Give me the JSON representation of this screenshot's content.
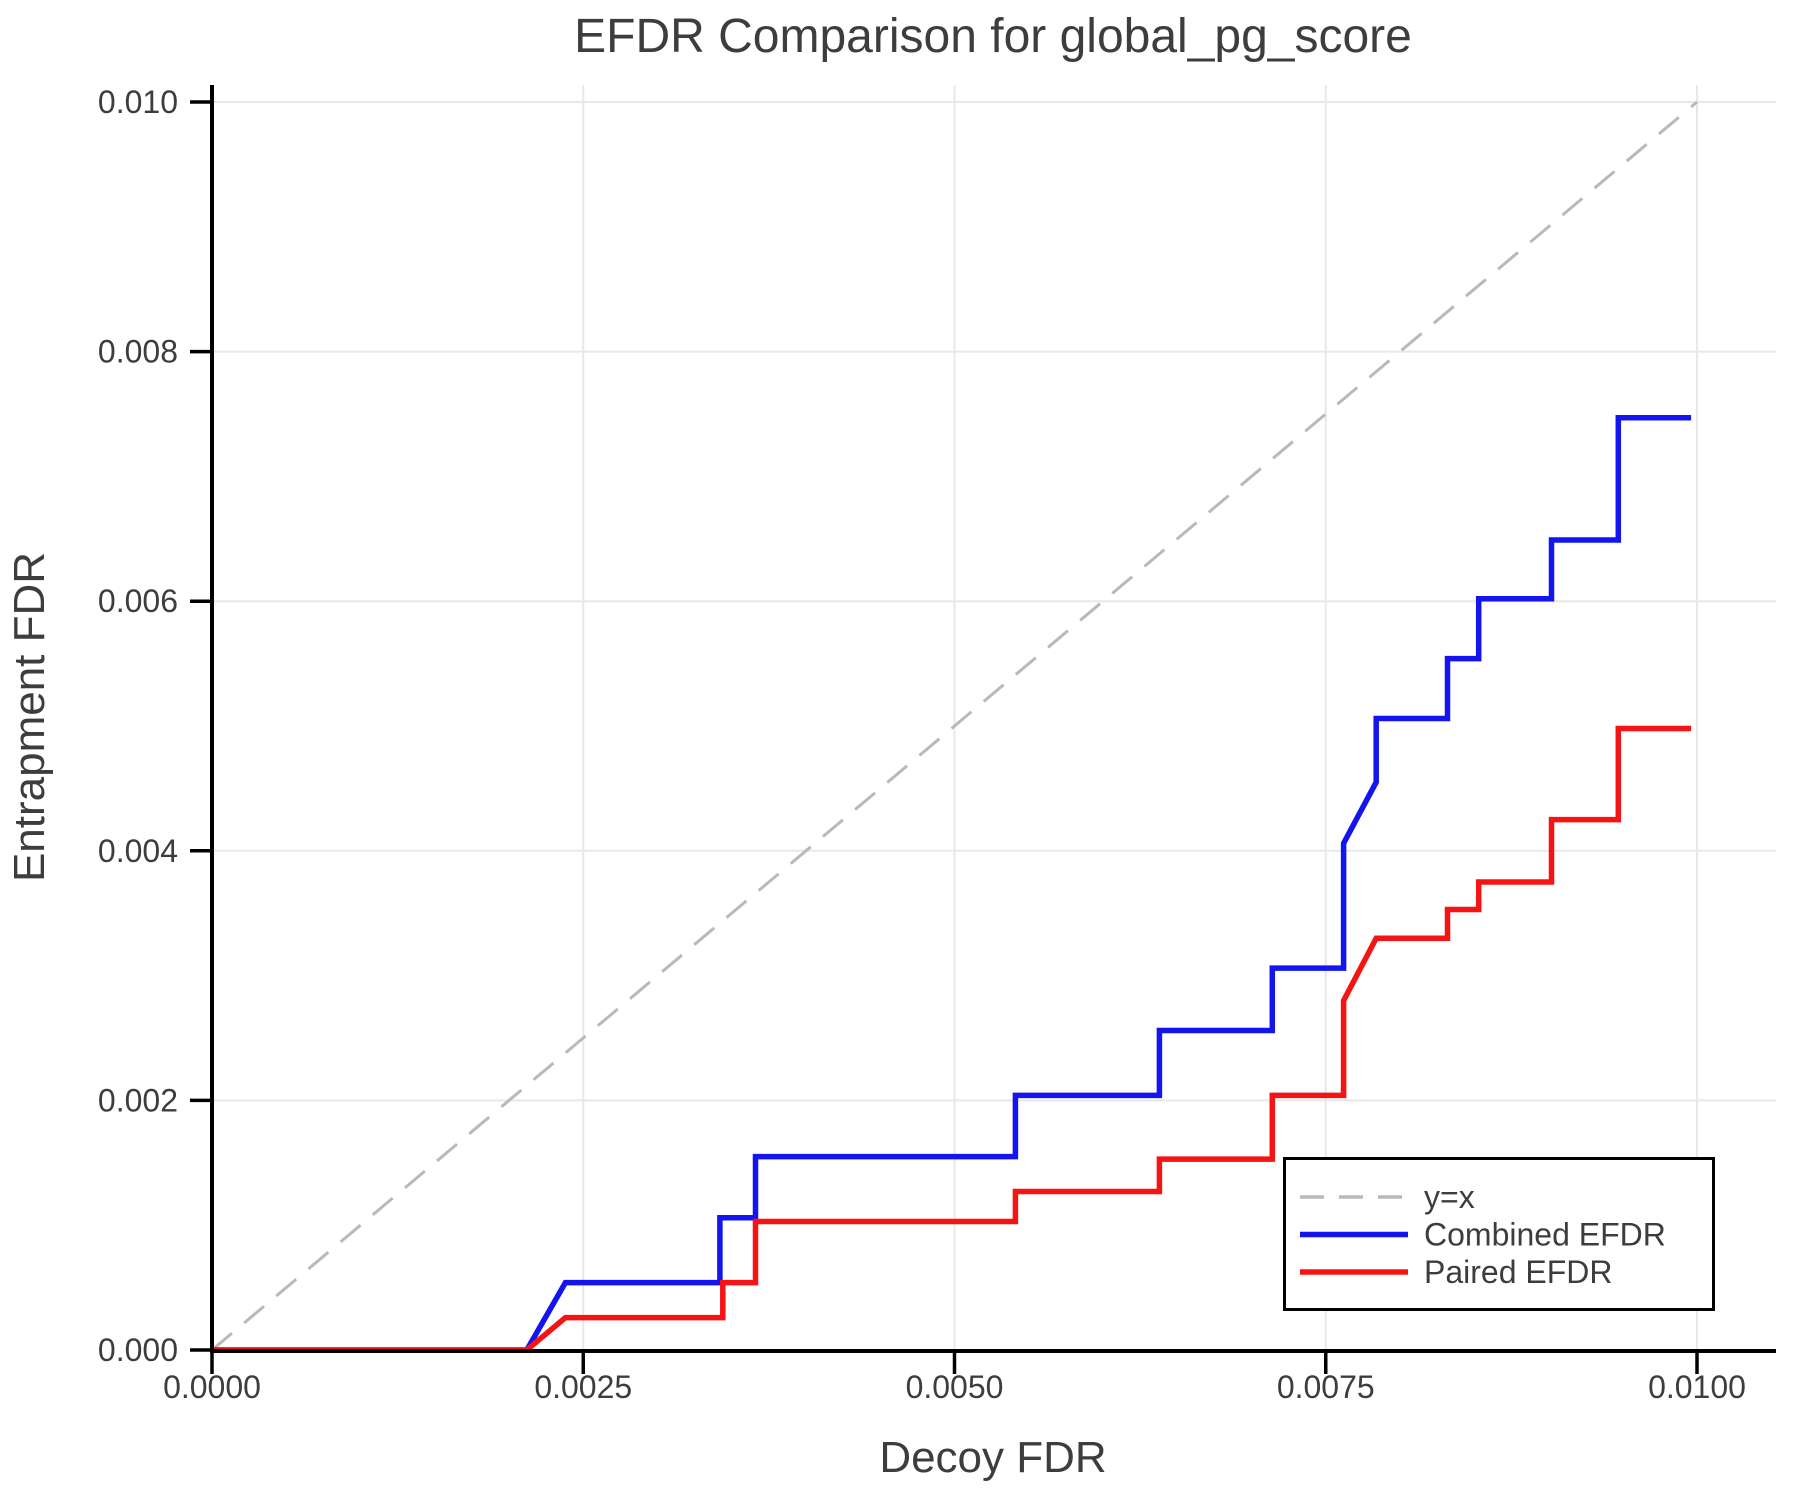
{
  "chart_data": {
    "type": "line",
    "title": "EFDR Comparison for global_pg_score",
    "xlabel": "Decoy FDR",
    "ylabel": "Entrapment FDR",
    "xlim": [
      0.0,
      0.0105
    ],
    "ylim": [
      0.0,
      0.0101
    ],
    "grid": true,
    "x_ticks": {
      "values": [
        0.0,
        0.0025,
        0.005,
        0.0075,
        0.01
      ],
      "labels": [
        "0.0000",
        "0.0025",
        "0.0050",
        "0.0075",
        "0.0100"
      ]
    },
    "y_ticks": {
      "values": [
        0.0,
        0.002,
        0.004,
        0.006,
        0.008,
        0.01
      ],
      "labels": [
        "0.000",
        "0.002",
        "0.004",
        "0.006",
        "0.008",
        "0.010"
      ]
    },
    "legend": {
      "position": "lower right",
      "entries": [
        {
          "label": "y=x",
          "color": "#b9b9b9",
          "dashed": true
        },
        {
          "label": "Combined EFDR",
          "color": "#1414f0",
          "dashed": false
        },
        {
          "label": "Paired EFDR",
          "color": "#f51414",
          "dashed": false
        }
      ]
    },
    "series": [
      {
        "name": "y=x",
        "color": "#b9b9b9",
        "dashed": true,
        "width": 3,
        "points": [
          [
            0.0,
            0.0
          ],
          [
            0.01,
            0.01
          ]
        ]
      },
      {
        "name": "Combined EFDR",
        "color": "#1414f0",
        "dashed": false,
        "width": 5.5,
        "points": [
          [
            0.0,
            0.0
          ],
          [
            0.00212,
            0.0
          ],
          [
            0.00238,
            0.00054
          ],
          [
            0.00342,
            0.00054
          ],
          [
            0.00342,
            0.00106
          ],
          [
            0.00366,
            0.00106
          ],
          [
            0.00366,
            0.00155
          ],
          [
            0.00541,
            0.00155
          ],
          [
            0.00541,
            0.00204
          ],
          [
            0.00638,
            0.00204
          ],
          [
            0.00638,
            0.00256
          ],
          [
            0.00714,
            0.00256
          ],
          [
            0.00714,
            0.00306
          ],
          [
            0.00762,
            0.00306
          ],
          [
            0.00762,
            0.00406
          ],
          [
            0.00784,
            0.00455
          ],
          [
            0.00784,
            0.00506
          ],
          [
            0.00832,
            0.00506
          ],
          [
            0.00832,
            0.00554
          ],
          [
            0.00853,
            0.00554
          ],
          [
            0.00853,
            0.00602
          ],
          [
            0.00902,
            0.00602
          ],
          [
            0.00902,
            0.00649
          ],
          [
            0.00947,
            0.00649
          ],
          [
            0.00947,
            0.00747
          ],
          [
            0.00996,
            0.00747
          ]
        ]
      },
      {
        "name": "Paired EFDR",
        "color": "#f51414",
        "dashed": false,
        "width": 5.5,
        "points": [
          [
            0.0,
            0.0
          ],
          [
            0.00212,
            0.0
          ],
          [
            0.00238,
            0.00026
          ],
          [
            0.00344,
            0.00026
          ],
          [
            0.00344,
            0.00054
          ],
          [
            0.00366,
            0.00054
          ],
          [
            0.00366,
            0.00103
          ],
          [
            0.00541,
            0.00103
          ],
          [
            0.00541,
            0.00127
          ],
          [
            0.00638,
            0.00127
          ],
          [
            0.00638,
            0.00153
          ],
          [
            0.00714,
            0.00153
          ],
          [
            0.00714,
            0.00204
          ],
          [
            0.00762,
            0.00204
          ],
          [
            0.00762,
            0.0028
          ],
          [
            0.00784,
            0.0033
          ],
          [
            0.00832,
            0.0033
          ],
          [
            0.00832,
            0.00353
          ],
          [
            0.00853,
            0.00353
          ],
          [
            0.00853,
            0.00375
          ],
          [
            0.00902,
            0.00375
          ],
          [
            0.00902,
            0.00425
          ],
          [
            0.00947,
            0.00425
          ],
          [
            0.00947,
            0.00498
          ],
          [
            0.00996,
            0.00498
          ]
        ]
      }
    ],
    "colors": {
      "grid": "#e8e8e8",
      "spine": "#000000",
      "text": "#3d3d3d",
      "background": "#ffffff"
    }
  }
}
